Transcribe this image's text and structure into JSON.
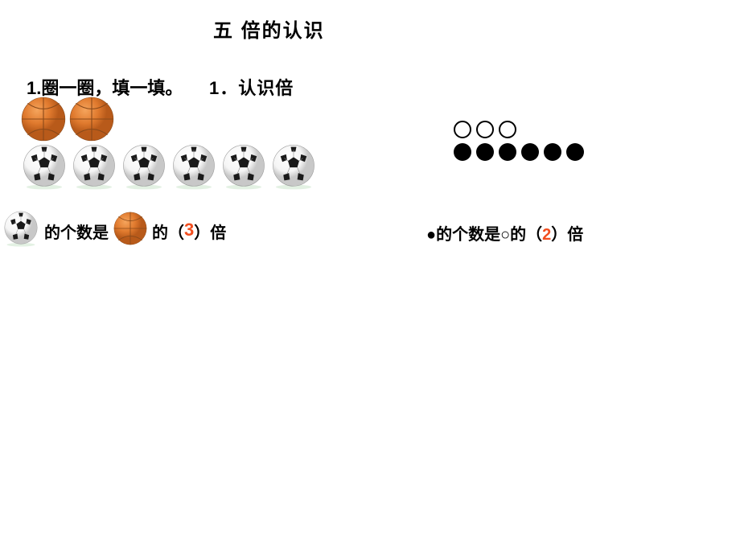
{
  "title": "五  倍的认识",
  "subtitle_left": "1.圈一圈，填一填。",
  "subtitle_right": "1．认识倍",
  "balls": {
    "basketball_count": 2,
    "soccer_count": 6,
    "basketball_color": "#e07a2e",
    "basketball_line": "#8a4a1a",
    "soccer_white": "#f5f5f5",
    "soccer_black": "#1a1a1a",
    "ball_size": 56,
    "soccer_size": 58
  },
  "circles": {
    "open_count": 3,
    "filled_count": 6,
    "open_size": 22,
    "filled_size": 22
  },
  "answer_left": {
    "part1": "的个数是",
    "part2": "的（",
    "value": "3",
    "part3": "）倍"
  },
  "answer_right": {
    "text_before": "●的个数是○的（",
    "value": "2",
    "text_after": "）倍"
  },
  "colors": {
    "answer_highlight": "#f24e1f",
    "text": "#000000",
    "background": "#ffffff"
  }
}
